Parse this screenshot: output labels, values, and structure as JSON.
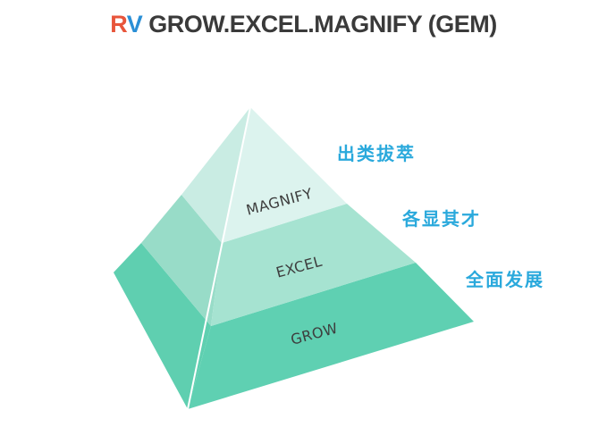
{
  "title": {
    "prefix_r": "R",
    "prefix_v": "V",
    "text": " GROW.EXCEL.MAGNIFY (GEM)"
  },
  "tiers": [
    {
      "label": "MAGNIFY",
      "side_label": "出类拔萃"
    },
    {
      "label": "EXCEL",
      "side_label": "各显其才"
    },
    {
      "label": "GROW",
      "side_label": "全面发展"
    }
  ],
  "colors": {
    "top_front": "#dcf3ee",
    "top_side": "#c9ece3",
    "middle_front": "#a6e3d1",
    "middle_side": "#98dcc8",
    "bottom_front": "#5fd0b2",
    "bottom_side": "#5fcfb0",
    "side_label": "#2aa9dc",
    "title_r": "#e8553b",
    "title_v": "#2a8fd6"
  }
}
